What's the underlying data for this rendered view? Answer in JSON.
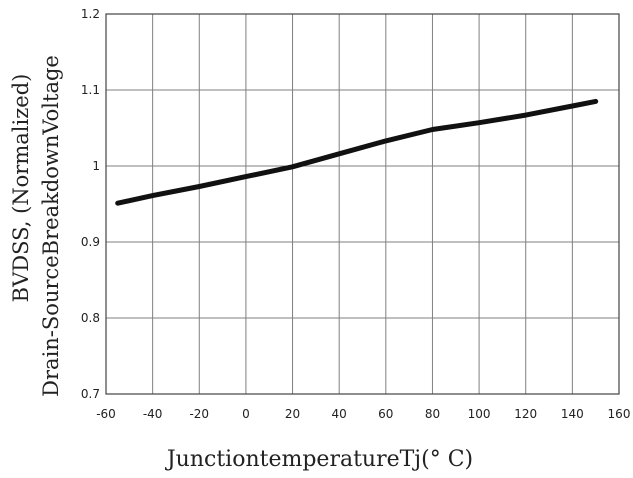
{
  "chart_data": {
    "type": "line",
    "xlabel": "JunctiontemperatureTj(° C)",
    "ylabel_line1": "BVDSS, (Normalized)",
    "ylabel_line2": "Drain-SourceBreakdownVoltage",
    "xlim": [
      -60,
      160
    ],
    "ylim": [
      0.7,
      1.2
    ],
    "x_ticks": [
      -60,
      -40,
      -20,
      0,
      20,
      40,
      60,
      80,
      100,
      120,
      140,
      160
    ],
    "y_ticks": [
      0.7,
      0.8,
      0.9,
      1,
      1.1,
      1.2
    ],
    "x_tick_labels": [
      "-60",
      "-40",
      "-20",
      "0",
      "20",
      "40",
      "60",
      "80",
      "100",
      "120",
      "140",
      "160"
    ],
    "y_tick_labels": [
      "0.7",
      "0.8",
      "0.9",
      "1",
      "1.1",
      "1.2"
    ],
    "grid": true,
    "series": [
      {
        "x": [
          -55,
          -40,
          -20,
          0,
          20,
          40,
          60,
          80,
          100,
          120,
          140,
          150
        ],
        "y": [
          0.951,
          0.961,
          0.973,
          0.986,
          0.999,
          1.016,
          1.033,
          1.048,
          1.057,
          1.067,
          1.079,
          1.085
        ]
      }
    ]
  }
}
